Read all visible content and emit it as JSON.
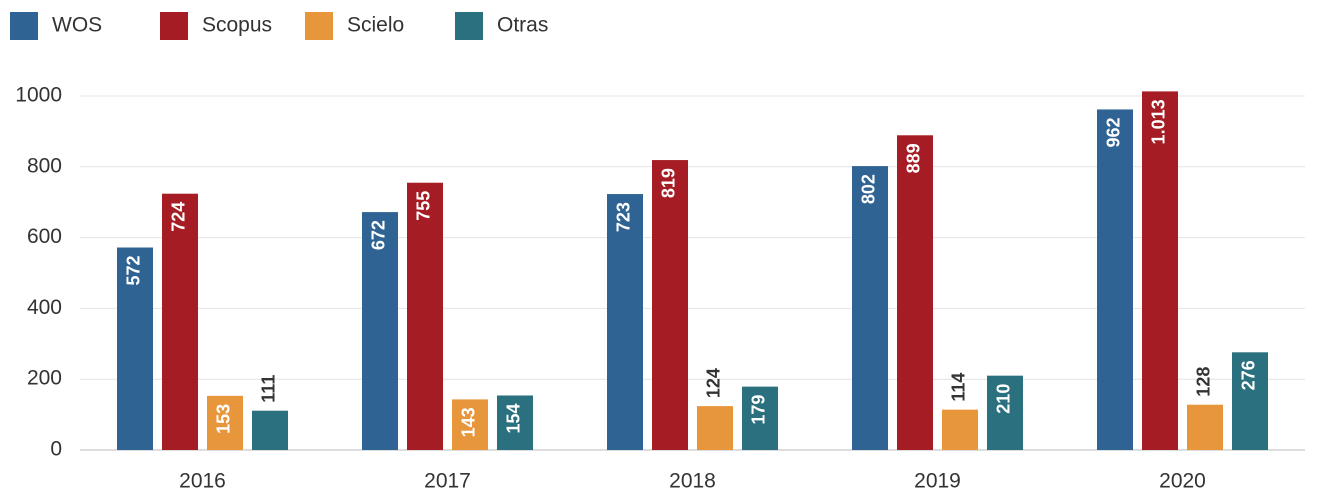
{
  "chart_data": {
    "type": "bar",
    "categories": [
      "2016",
      "2017",
      "2018",
      "2019",
      "2020"
    ],
    "series": [
      {
        "name": "WOS",
        "color": "#2e6393",
        "values": [
          572,
          672,
          723,
          802,
          962
        ]
      },
      {
        "name": "Scopus",
        "color": "#a51c24",
        "values": [
          724,
          755,
          819,
          889,
          1013
        ],
        "value_labels": [
          "724",
          "755",
          "819",
          "889",
          "1.013"
        ]
      },
      {
        "name": "Scielo",
        "color": "#e8963c",
        "values": [
          153,
          143,
          124,
          114,
          128
        ]
      },
      {
        "name": "Otras",
        "color": "#2a707e",
        "values": [
          111,
          154,
          179,
          210,
          276
        ]
      }
    ],
    "ylim": [
      0,
      1000
    ],
    "yticks": [
      0,
      200,
      400,
      600,
      800,
      1000
    ],
    "grid": true,
    "legend": "top-left"
  }
}
